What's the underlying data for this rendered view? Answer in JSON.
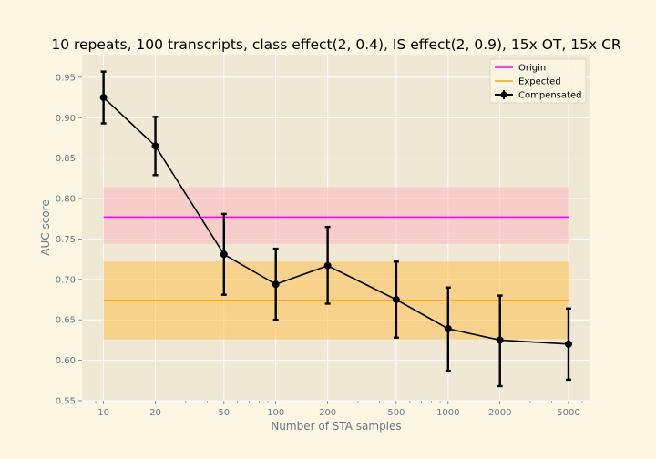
{
  "chart_data": {
    "type": "line",
    "title": "10 repeats, 100 transcripts, class effect(2, 0.4), IS effect(2, 0.9), 15x OT, 15x CR",
    "xlabel": "Number of STA samples",
    "ylabel": "AUC score",
    "xscale": "log",
    "xlim": [
      7.5,
      6700
    ],
    "ylim": [
      0.55,
      0.978
    ],
    "xticks": [
      10,
      20,
      50,
      100,
      200,
      500,
      1000,
      2000,
      5000
    ],
    "xtick_labels": [
      "10",
      "20",
      "50",
      "100",
      "200",
      "500",
      "1000",
      "2000",
      "5000"
    ],
    "yticks": [
      0.55,
      0.6,
      0.65,
      0.7,
      0.75,
      0.8,
      0.85,
      0.9,
      0.95
    ],
    "ytick_labels": [
      "0.55",
      "0.60",
      "0.65",
      "0.70",
      "0.75",
      "0.80",
      "0.85",
      "0.90",
      "0.95"
    ],
    "grid": true,
    "legend_position": "top-right",
    "x": [
      10,
      20,
      50,
      100,
      200,
      500,
      1000,
      2000,
      5000
    ],
    "series": [
      {
        "name": "Origin",
        "kind": "hline",
        "color": "#ff00ff",
        "y": 0.777,
        "band": [
          0.744,
          0.814
        ],
        "band_color": "#ffb6c1",
        "x_range": [
          10,
          5000
        ]
      },
      {
        "name": "Expected",
        "kind": "hline",
        "color": "#ffa500",
        "y": 0.674,
        "band": [
          0.626,
          0.722
        ],
        "band_color": "#ffc04c",
        "x_range": [
          10,
          5000
        ]
      },
      {
        "name": "Compensated",
        "kind": "errorbar",
        "color": "#000000",
        "values": [
          0.925,
          0.865,
          0.731,
          0.694,
          0.717,
          0.675,
          0.639,
          0.625,
          0.62
        ],
        "err_low": [
          0.893,
          0.829,
          0.681,
          0.65,
          0.67,
          0.628,
          0.587,
          0.568,
          0.576
        ],
        "err_high": [
          0.957,
          0.901,
          0.781,
          0.738,
          0.765,
          0.722,
          0.69,
          0.68,
          0.664
        ]
      }
    ]
  },
  "colors": {
    "figure_bg": "#fdf6e3",
    "axes_bg": "#eee8d5",
    "grid": "#ffffff",
    "text": "#657b83"
  }
}
